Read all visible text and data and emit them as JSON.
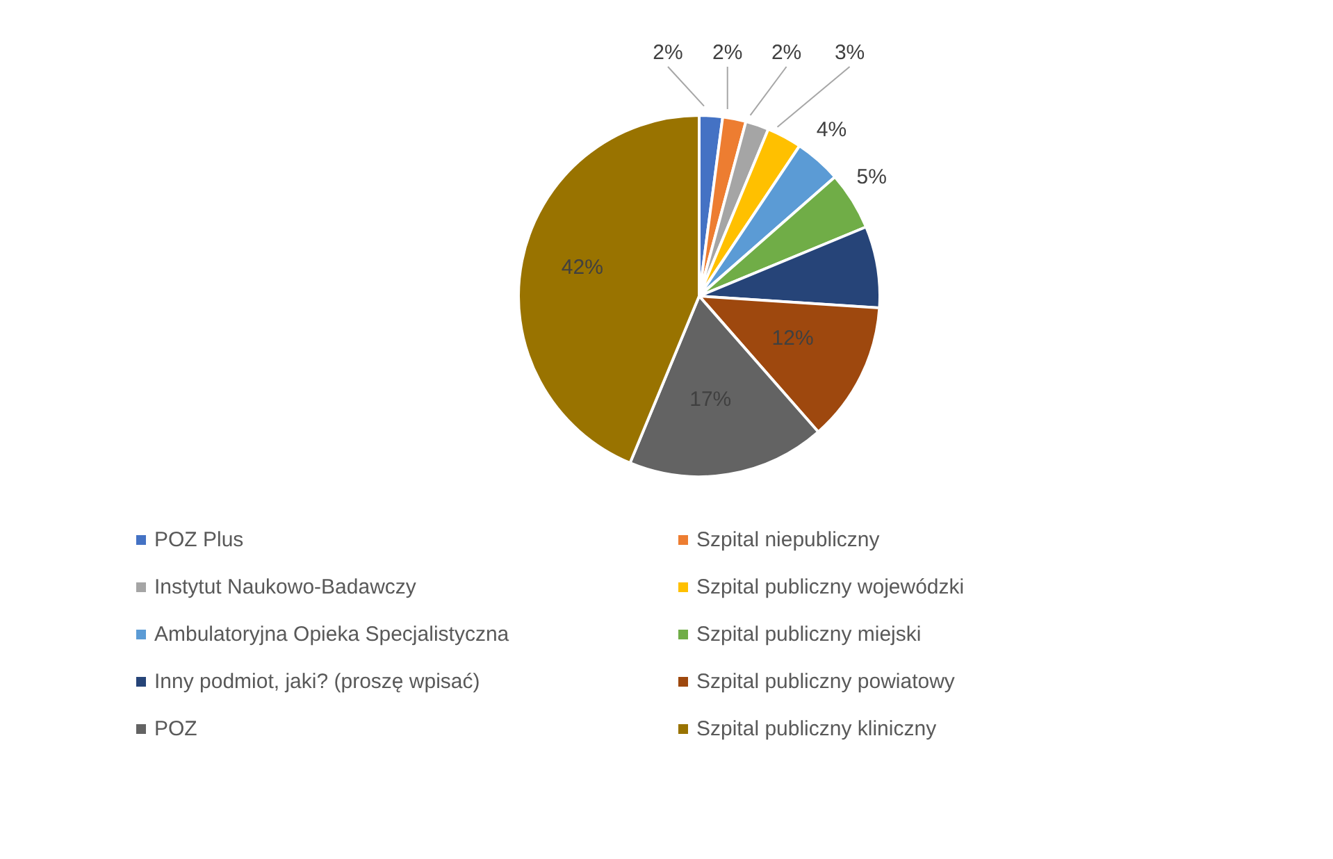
{
  "chart_data": {
    "type": "pie",
    "categories": [
      "POZ Plus",
      "Szpital niepubliczny",
      "Instytut Naukowo-Badawczy",
      "Szpital publiczny wojewódzki",
      "Ambulatoryjna Opieka Specjalistyczna",
      "Szpital publiczny miejski",
      "Inny podmiot, jaki? (proszę wpisać)",
      "Szpital publiczny powiatowy",
      "POZ",
      "Szpital publiczny kliniczny"
    ],
    "values": [
      2,
      2,
      2,
      3,
      4,
      5,
      7,
      12,
      17,
      42
    ],
    "value_labels": [
      "2%",
      "2%",
      "2%",
      "3%",
      "4%",
      "5%",
      null,
      "12%",
      "17%",
      "42%"
    ],
    "colors": [
      "#4472c4",
      "#ed7d31",
      "#a5a5a5",
      "#ffc000",
      "#5b9bd5",
      "#70ad47",
      "#264478",
      "#9e480e",
      "#636363",
      "#997300"
    ],
    "legend": "bottom"
  }
}
